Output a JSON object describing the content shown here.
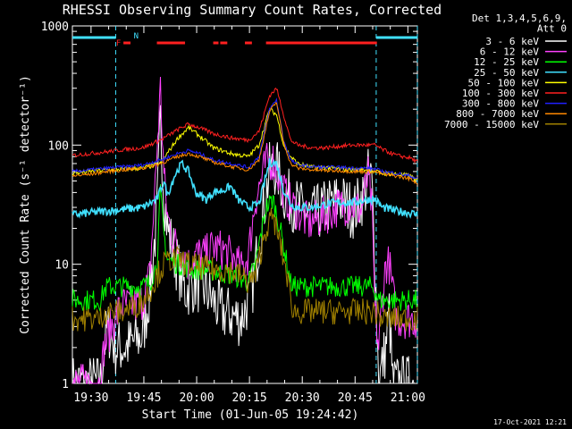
{
  "chart_data": {
    "type": "line",
    "title": "RHESSI Observing Summary Count Rates, Corrected",
    "xlabel": "Start Time (01-Jun-05 19:24:42)",
    "ylabel": "Corrected Count Rate (s⁻¹ detector⁻¹)",
    "y_scale": "log",
    "ylim": [
      1,
      1000
    ],
    "xlim_minutes": [
      0,
      98
    ],
    "x_ticks": [
      "19:30",
      "19:45",
      "20:00",
      "20:15",
      "20:30",
      "20:45",
      "21:00"
    ],
    "y_ticks": [
      "1",
      "10",
      "100",
      "1000"
    ],
    "footer_date": "17-Oct-2021 12:21",
    "legend_header": [
      "Det 1,3,4,5,6,9,",
      "Att 0"
    ],
    "flags": [
      {
        "label": "F",
        "color": "#ff2020",
        "segments": [
          [
            14.5,
            16.5
          ],
          [
            24,
            32
          ],
          [
            40,
            41.5
          ],
          [
            42,
            44
          ],
          [
            49,
            51
          ],
          [
            55,
            86.5
          ]
        ]
      },
      {
        "label": "N",
        "color": "#40e0ff",
        "segments": [
          [
            0,
            12.3
          ],
          [
            86.3,
            98
          ]
        ]
      }
    ],
    "vlines": [
      12.3,
      86.3,
      98
    ],
    "series": [
      {
        "name": "3 - 6 keV",
        "color": "#ffffff",
        "x": [
          0,
          5,
          8,
          9,
          10,
          12,
          15,
          20,
          22,
          24,
          25,
          26,
          27,
          29,
          32,
          35,
          38,
          42,
          48,
          51,
          54,
          56,
          58,
          60,
          64,
          68,
          72,
          76,
          80,
          83,
          84,
          85,
          86,
          87,
          89,
          90,
          91,
          92,
          95,
          97
        ],
        "y": [
          1,
          1,
          1,
          2,
          3,
          2,
          2,
          2.5,
          6,
          25,
          160,
          40,
          20,
          12,
          6,
          7,
          6,
          4,
          3.5,
          6,
          25,
          60,
          65,
          40,
          30,
          25,
          30,
          35,
          28,
          40,
          55,
          50,
          10,
          1,
          2,
          4,
          1,
          1,
          1,
          1
        ]
      },
      {
        "name": "6 - 12 keV",
        "color": "#ff40ff",
        "x": [
          0,
          8,
          9,
          11,
          14,
          16,
          18,
          20,
          22,
          23,
          25,
          26,
          27,
          29,
          31,
          33,
          35,
          38,
          40,
          43,
          46,
          48,
          50,
          52,
          55,
          57,
          59,
          61,
          63,
          67,
          71,
          75,
          79,
          82,
          83,
          84,
          85,
          86,
          87,
          88,
          89,
          90,
          92,
          94,
          96,
          98
        ],
        "y": [
          1,
          1,
          2,
          3,
          4.5,
          4.5,
          4.5,
          5,
          8,
          25,
          300,
          55,
          25,
          15,
          13,
          10,
          12,
          12,
          14,
          13,
          11,
          9,
          12,
          35,
          70,
          75,
          50,
          35,
          30,
          22,
          25,
          30,
          32,
          28,
          40,
          55,
          30,
          4,
          2,
          5,
          10,
          10,
          3.5,
          3.5,
          3.5,
          3.5
        ]
      },
      {
        "name": "12 - 25 keV",
        "color": "#00ff00",
        "x": [
          0,
          8,
          9,
          10,
          16,
          20,
          22,
          24,
          25,
          26,
          27,
          30,
          34,
          38,
          42,
          46,
          50,
          52,
          55,
          57,
          59,
          61,
          62,
          63,
          65,
          70,
          75,
          80,
          85,
          86,
          87,
          90,
          95,
          98
        ],
        "y": [
          5,
          5,
          6,
          6.5,
          6.5,
          6.5,
          7,
          10,
          40,
          18,
          11,
          10,
          9,
          9,
          8.5,
          8,
          7,
          10,
          30,
          35,
          20,
          10,
          7,
          6.5,
          6.5,
          6.5,
          6.5,
          6.5,
          6.5,
          6,
          5,
          5,
          5,
          5
        ]
      },
      {
        "name": "25 - 50 keV",
        "color": "#40e0ff",
        "x": [
          0,
          5,
          10,
          15,
          20,
          24,
          26,
          27,
          29,
          31,
          33,
          35,
          38,
          40,
          43,
          45,
          47,
          50,
          53,
          56,
          58,
          60,
          62,
          64,
          68,
          72,
          76,
          80,
          84,
          86,
          88,
          92,
          96,
          98
        ],
        "y": [
          26,
          27,
          28,
          29,
          30,
          35,
          50,
          38,
          55,
          70,
          60,
          40,
          35,
          40,
          42,
          45,
          35,
          30,
          32,
          72,
          70,
          42,
          32,
          30,
          30,
          32,
          33,
          33,
          35,
          35,
          30,
          28,
          27,
          26
        ]
      },
      {
        "name": "50 - 100 keV",
        "color": "#ffff00",
        "x": [
          0,
          5,
          10,
          15,
          20,
          25,
          30,
          33,
          36,
          40,
          45,
          50,
          53,
          56,
          58,
          60,
          62,
          64,
          68,
          72,
          76,
          80,
          84,
          86,
          88,
          92,
          96,
          98
        ],
        "y": [
          58,
          60,
          62,
          63,
          64,
          70,
          115,
          140,
          120,
          95,
          85,
          80,
          100,
          200,
          180,
          100,
          80,
          70,
          65,
          65,
          63,
          62,
          62,
          60,
          58,
          57,
          55,
          50
        ]
      },
      {
        "name": "100 - 300 keV",
        "color": "#ff2020",
        "x": [
          0,
          5,
          10,
          15,
          20,
          25,
          30,
          33,
          36,
          40,
          45,
          50,
          53,
          56,
          58,
          60,
          62,
          64,
          68,
          72,
          76,
          80,
          84,
          86,
          88,
          92,
          96,
          98
        ],
        "y": [
          82,
          85,
          88,
          92,
          95,
          110,
          135,
          150,
          140,
          125,
          115,
          110,
          130,
          260,
          300,
          180,
          110,
          100,
          95,
          95,
          98,
          100,
          100,
          100,
          92,
          82,
          78,
          72
        ]
      },
      {
        "name": "300 - 800 keV",
        "color": "#2020ff",
        "x": [
          0,
          5,
          10,
          15,
          20,
          25,
          30,
          33,
          36,
          40,
          45,
          50,
          53,
          56,
          58,
          60,
          62,
          64,
          68,
          72,
          76,
          80,
          84,
          86,
          88,
          92,
          96,
          98
        ],
        "y": [
          60,
          62,
          64,
          66,
          68,
          75,
          85,
          90,
          85,
          75,
          70,
          65,
          80,
          200,
          240,
          110,
          75,
          68,
          66,
          65,
          65,
          64,
          64,
          63,
          60,
          58,
          55,
          52
        ]
      },
      {
        "name": "800 - 7000 keV",
        "color": "#ff8800",
        "x": [
          0,
          5,
          10,
          15,
          20,
          25,
          30,
          33,
          36,
          40,
          45,
          50,
          53,
          56,
          58,
          60,
          62,
          64,
          68,
          72,
          76,
          80,
          84,
          86,
          88,
          92,
          96,
          98
        ],
        "y": [
          55,
          57,
          60,
          62,
          64,
          70,
          80,
          85,
          80,
          72,
          66,
          62,
          75,
          190,
          230,
          105,
          70,
          64,
          62,
          61,
          61,
          60,
          60,
          60,
          57,
          55,
          52,
          48
        ]
      },
      {
        "name": "7000 - 15000 keV",
        "color": "#a08000",
        "x": [
          0,
          8,
          9,
          10,
          14,
          18,
          20,
          22,
          24,
          26,
          28,
          30,
          33,
          36,
          40,
          44,
          48,
          50,
          52,
          55,
          57,
          59,
          61,
          62,
          63,
          66,
          70,
          75,
          80,
          85,
          86,
          88,
          92,
          96,
          98
        ],
        "y": [
          3.5,
          3.5,
          4,
          4,
          4,
          4.5,
          5,
          6,
          8,
          10,
          11,
          11,
          10,
          9.5,
          9,
          9,
          8,
          7,
          8,
          20,
          25,
          15,
          8,
          5,
          4,
          4,
          4,
          4,
          4,
          4,
          4,
          3.5,
          3.5,
          3.5,
          3.5
        ]
      }
    ],
    "grid": false,
    "legend_placement": "right"
  }
}
